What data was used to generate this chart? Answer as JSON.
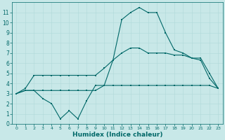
{
  "xlabel": "Humidex (Indice chaleur)",
  "background_color": "#c8e8e8",
  "grid_color": "#b0d8d8",
  "line_color": "#006868",
  "xlim": [
    -0.5,
    23.5
  ],
  "ylim": [
    0,
    12
  ],
  "yticks": [
    0,
    1,
    2,
    3,
    4,
    5,
    6,
    7,
    8,
    9,
    10,
    11
  ],
  "xticks": [
    0,
    1,
    2,
    3,
    4,
    5,
    6,
    7,
    8,
    9,
    10,
    11,
    12,
    13,
    14,
    15,
    16,
    17,
    18,
    19,
    20,
    21,
    22,
    23
  ],
  "line1_x": [
    0,
    1,
    2,
    3,
    4,
    5,
    6,
    7,
    8,
    9,
    10,
    11,
    12,
    13,
    14,
    15,
    16,
    17,
    18,
    19,
    20,
    21,
    22,
    23
  ],
  "line1_y": [
    3.0,
    3.3,
    3.3,
    3.3,
    3.3,
    3.3,
    3.3,
    3.3,
    3.3,
    3.3,
    3.8,
    6.3,
    10.3,
    11.0,
    11.5,
    11.0,
    11.0,
    9.0,
    7.3,
    7.0,
    6.5,
    6.3,
    4.5,
    3.5
  ],
  "line2_x": [
    0,
    1,
    2,
    3,
    4,
    5,
    6,
    7,
    8,
    9,
    10,
    11,
    12,
    13,
    14,
    15,
    16,
    17,
    18,
    19,
    20,
    21,
    22,
    23
  ],
  "line2_y": [
    3.0,
    3.5,
    4.8,
    4.8,
    4.8,
    4.8,
    4.8,
    4.8,
    4.8,
    4.8,
    5.5,
    6.3,
    7.0,
    7.5,
    7.5,
    7.0,
    7.0,
    7.0,
    6.8,
    6.8,
    6.5,
    6.5,
    5.0,
    3.5
  ],
  "line3_x": [
    0,
    1,
    2,
    3,
    4,
    5,
    6,
    7,
    8,
    9,
    10,
    11,
    12,
    13,
    14,
    15,
    16,
    17,
    18,
    19,
    20,
    21,
    22,
    23
  ],
  "line3_y": [
    3.0,
    3.3,
    3.3,
    2.5,
    2.0,
    0.5,
    1.3,
    0.5,
    2.3,
    3.8,
    3.8,
    3.8,
    3.8,
    3.8,
    3.8,
    3.8,
    3.8,
    3.8,
    3.8,
    3.8,
    3.8,
    3.8,
    3.8,
    3.5
  ],
  "xlabel_fontsize": 6.5,
  "tick_fontsize_x": 4.5,
  "tick_fontsize_y": 5.5,
  "linewidth": 0.8,
  "markersize": 2.0
}
